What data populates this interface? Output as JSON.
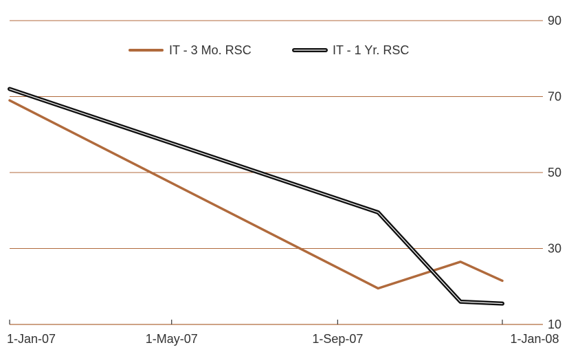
{
  "chart_data": {
    "type": "line",
    "x": [
      "2007-01-01",
      "2007-10-01",
      "2007-12-01",
      "2008-01-01"
    ],
    "x_ticks": [
      "1-Jan-07",
      "1-May-07",
      "1-Sep-07",
      "1-Jan-08"
    ],
    "x_tick_dates": [
      "2007-01-01",
      "2007-05-01",
      "2007-09-01",
      "2008-01-01"
    ],
    "ylim": [
      10,
      90
    ],
    "yticks": [
      10,
      30,
      50,
      70,
      90
    ],
    "grid": true,
    "legend_position": "top",
    "series": [
      {
        "name": "IT - 3 Mo. RSC",
        "color": "#b06a3c",
        "points": [
          {
            "date": "2007-01-01",
            "value": 69
          },
          {
            "date": "2007-10-01",
            "value": 19.5
          },
          {
            "date": "2007-12-01",
            "value": 26.5
          },
          {
            "date": "2008-01-01",
            "value": 21.5
          }
        ]
      },
      {
        "name": "IT - 1 Yr. RSC",
        "color": "#111111",
        "points": [
          {
            "date": "2007-01-01",
            "value": 72
          },
          {
            "date": "2007-10-01",
            "value": 39.5
          },
          {
            "date": "2007-12-01",
            "value": 16
          },
          {
            "date": "2008-01-01",
            "value": 15.5
          }
        ]
      }
    ]
  }
}
